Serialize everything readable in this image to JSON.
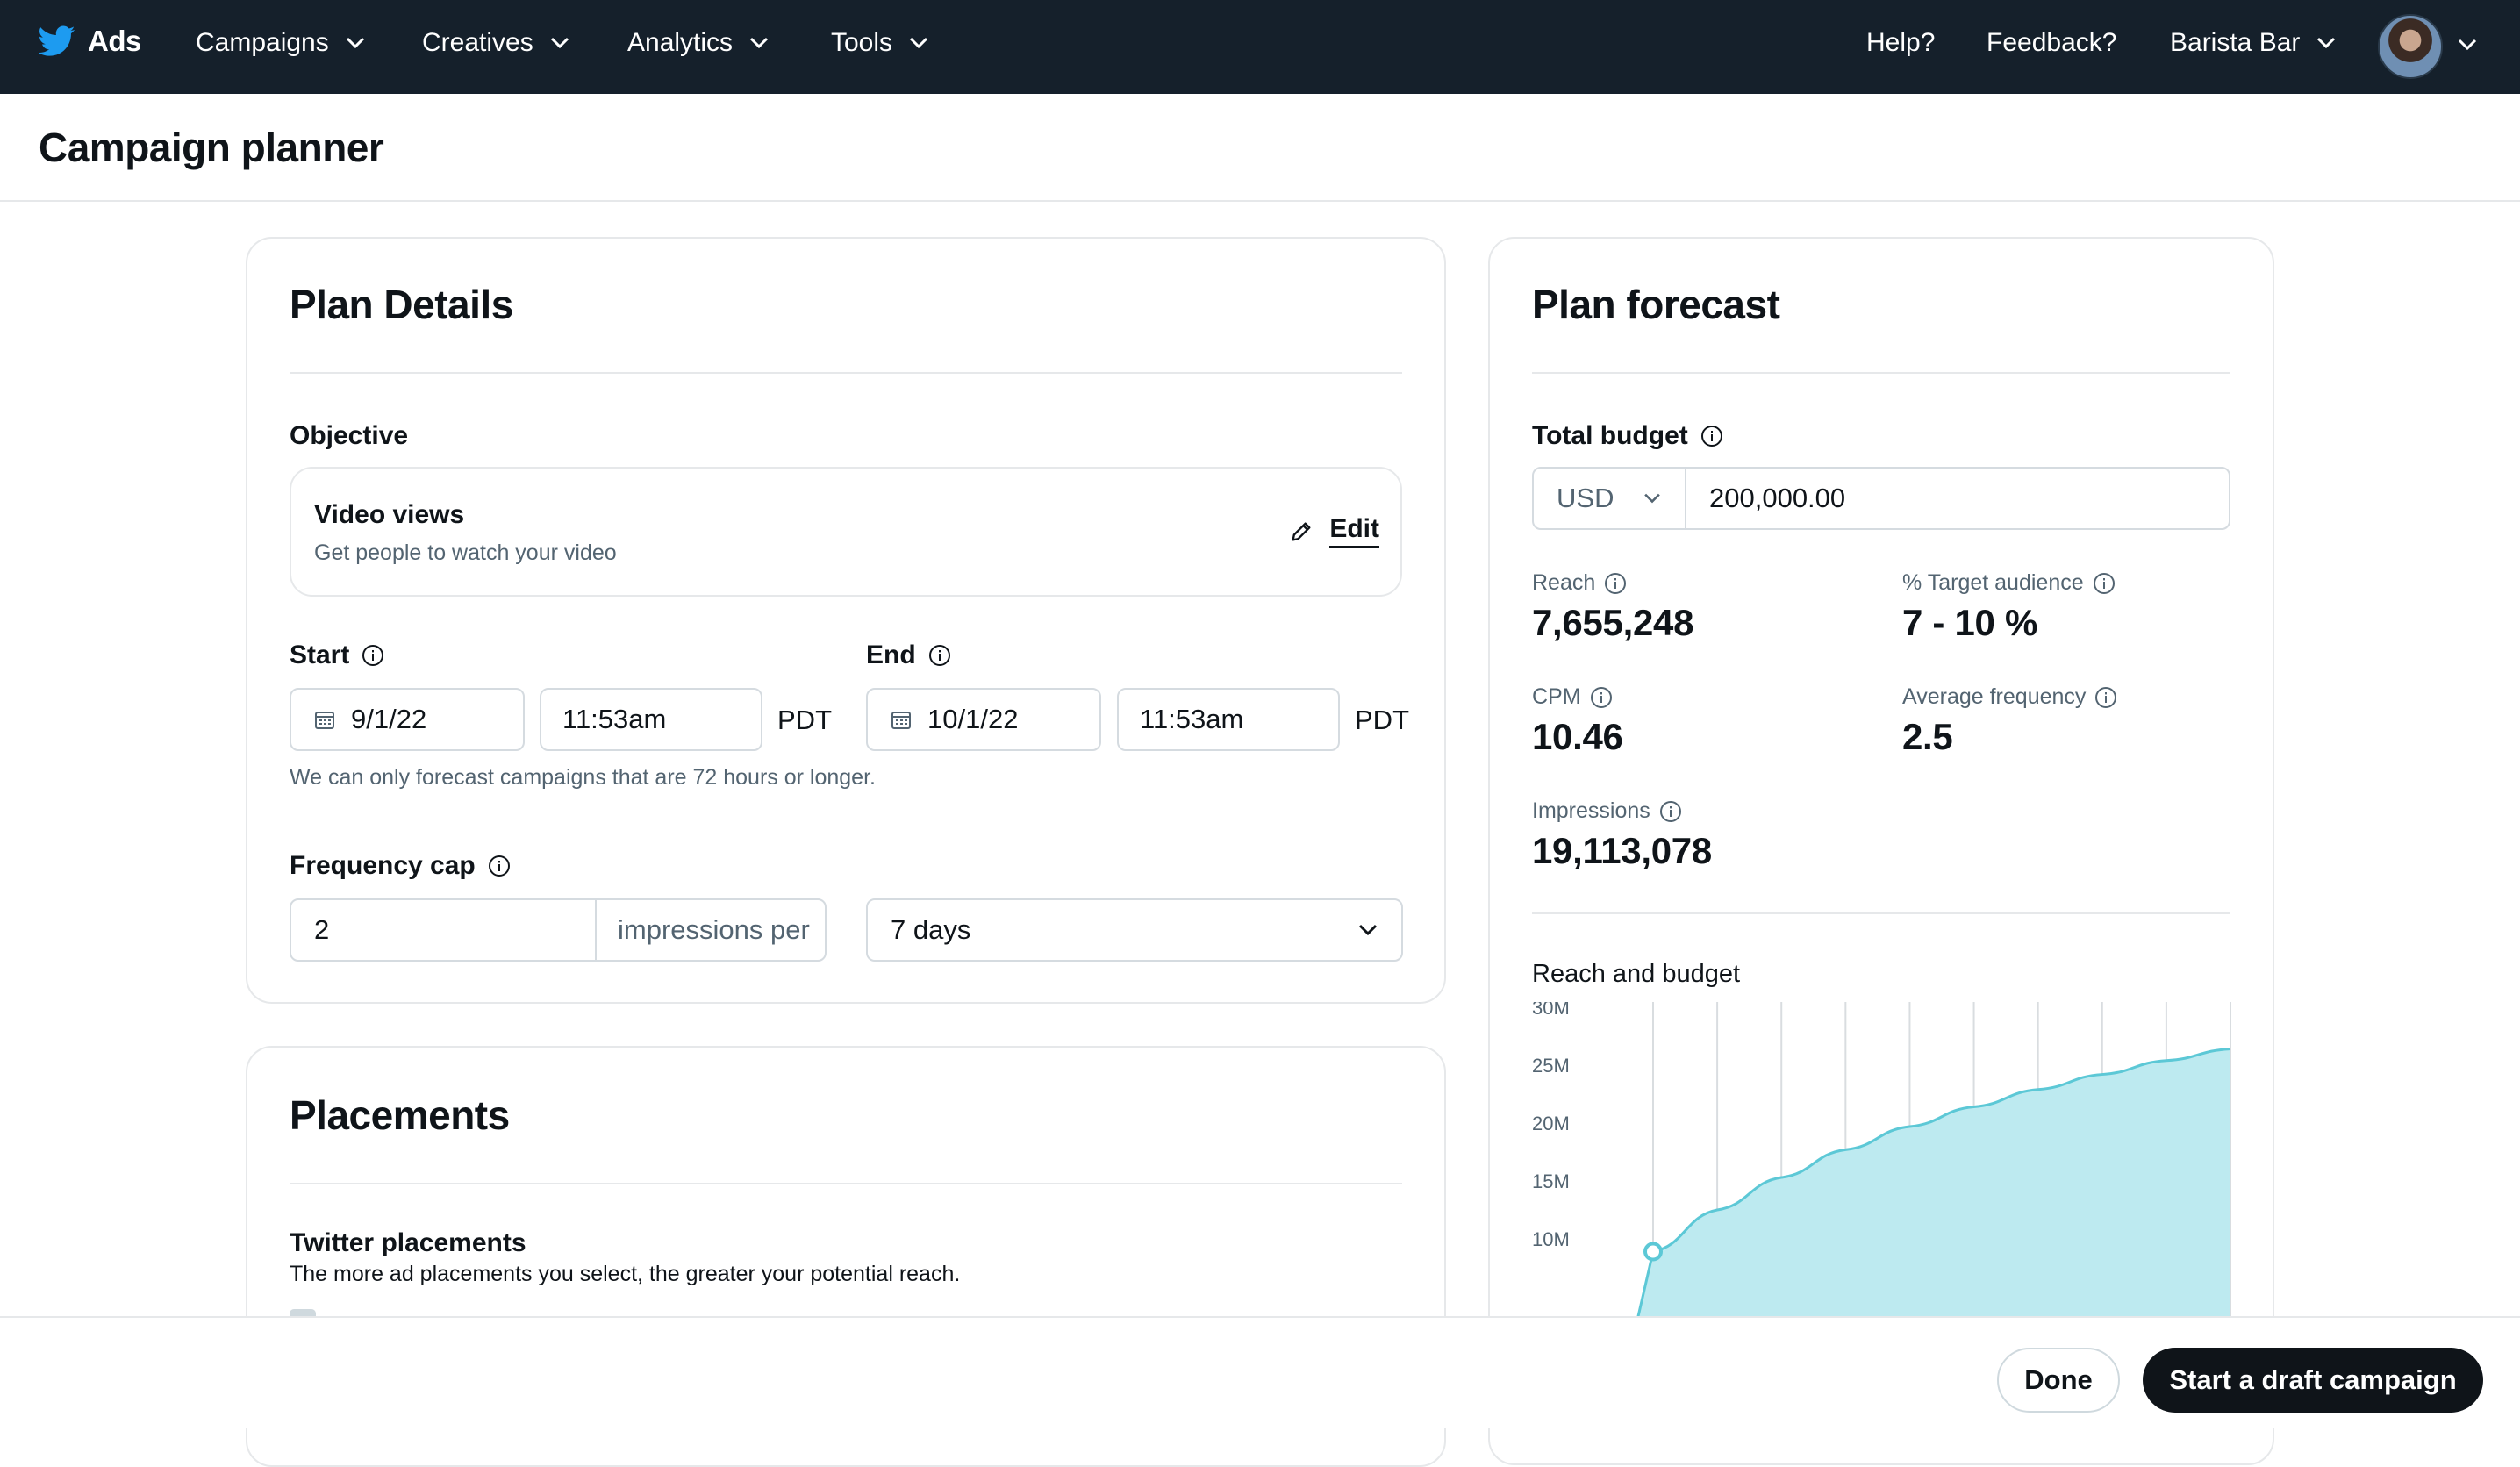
{
  "nav": {
    "brand": "Ads",
    "items": [
      {
        "label": "Campaigns"
      },
      {
        "label": "Creatives"
      },
      {
        "label": "Analytics"
      },
      {
        "label": "Tools"
      }
    ],
    "help": "Help?",
    "feedback": "Feedback?",
    "account": "Barista Bar"
  },
  "page": {
    "title": "Campaign planner"
  },
  "plan_details": {
    "title": "Plan Details",
    "objective_label": "Objective",
    "objective": {
      "title": "Video views",
      "subtitle": "Get people to watch your video",
      "edit": "Edit"
    },
    "start_label": "Start",
    "start_date": "9/1/22",
    "start_time": "11:53am",
    "start_tz": "PDT",
    "end_label": "End",
    "end_date": "10/1/22",
    "end_time": "11:53am",
    "end_tz": "PDT",
    "forecast_note": "We can only forecast campaigns that are 72 hours or longer.",
    "frequency_label": "Frequency cap",
    "frequency_value": "2",
    "frequency_unit": "impressions per",
    "frequency_period": "7 days"
  },
  "placements": {
    "title": "Placements",
    "twitter_label": "Twitter placements",
    "twitter_sub": "The more ad placements you select, the greater your potential reach."
  },
  "forecast": {
    "title": "Plan forecast",
    "budget_label": "Total budget",
    "currency": "USD",
    "budget_value": "200,000.00",
    "reach_label": "Reach",
    "reach_value": "7,655,248",
    "target_label": "% Target audience",
    "target_value": "7 - 10 %",
    "cpm_label": "CPM",
    "cpm_value": "10.46",
    "freq_label": "Average frequency",
    "freq_value": "2.5",
    "impressions_label": "Impressions",
    "impressions_value": "19,113,078",
    "chart_title": "Reach and budget"
  },
  "chart_data": {
    "type": "area",
    "title": "Reach and budget",
    "yticks": [
      "30M",
      "25M",
      "20M",
      "15M",
      "10M"
    ],
    "ylim": [
      5,
      30
    ],
    "y_unit": "M",
    "x": [
      0,
      1,
      2,
      3,
      4,
      5,
      6,
      7,
      8,
      9
    ],
    "values": [
      8.9,
      12.5,
      15.3,
      17.7,
      19.7,
      21.4,
      22.9,
      24.2,
      25.4,
      26.4
    ],
    "marker_index": 0,
    "fill_color": "#bdeaf0",
    "line_color": "#5cc8d6",
    "grid": true
  },
  "actions": {
    "done": "Done",
    "draft": "Start a draft campaign"
  }
}
